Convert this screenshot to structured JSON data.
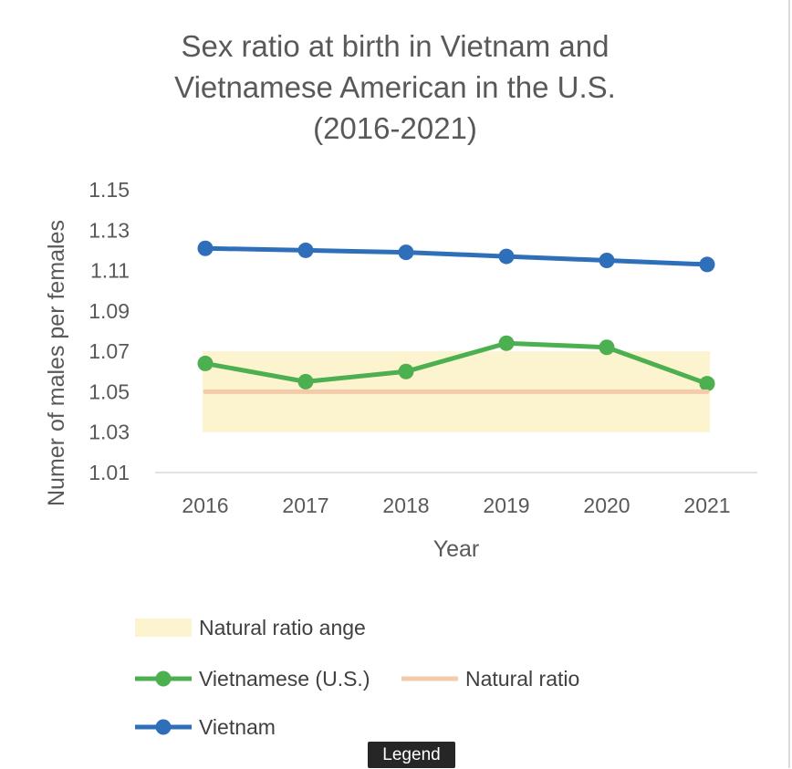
{
  "chart_data": {
    "type": "line",
    "title_lines": [
      "Sex ratio at birth in Vietnam and",
      "Vietnamese American in the U.S.",
      "(2016-2021)"
    ],
    "xlabel": "Year",
    "ylabel": "Numer of males per females",
    "categories": [
      "2016",
      "2017",
      "2018",
      "2019",
      "2020",
      "2021"
    ],
    "ylim": [
      1.01,
      1.15
    ],
    "yticks": [
      "1.15",
      "1.13",
      "1.11",
      "1.09",
      "1.07",
      "1.05",
      "1.03",
      "1.01"
    ],
    "grid": false,
    "legend_position": "bottom",
    "band": {
      "name": "Natural ratio ange",
      "low": 1.03,
      "high": 1.07,
      "color": "#fcf3cf"
    },
    "series": [
      {
        "name": "Vietnamese (U.S.)",
        "color": "#4caf50",
        "markers": true,
        "values": [
          1.064,
          1.055,
          1.06,
          1.074,
          1.072,
          1.054
        ]
      },
      {
        "name": "Natural ratio",
        "color": "#f4cbaa",
        "markers": false,
        "values": [
          1.05,
          1.05,
          1.05,
          1.05,
          1.05,
          1.05
        ]
      },
      {
        "name": "Vietnam",
        "color": "#2f6fba",
        "markers": true,
        "values": [
          1.121,
          1.12,
          1.119,
          1.117,
          1.115,
          1.113
        ]
      }
    ]
  },
  "tooltip": {
    "label": "Legend"
  }
}
